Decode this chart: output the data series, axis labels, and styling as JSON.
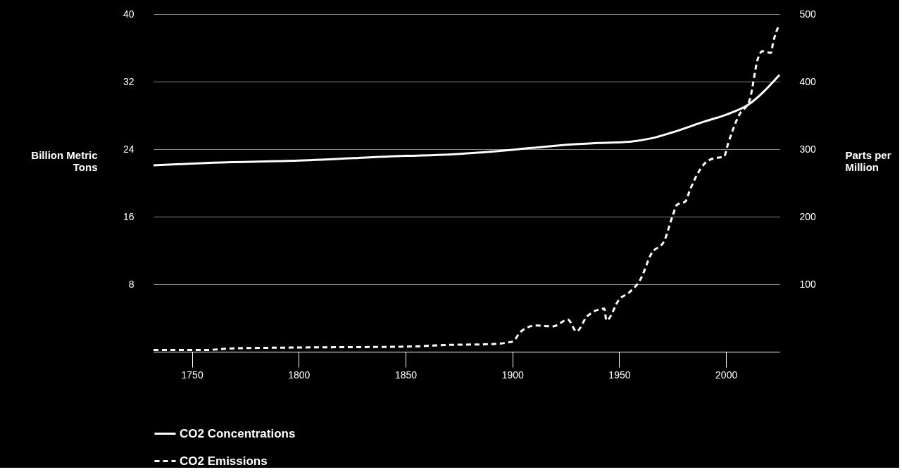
{
  "chart_data": {
    "type": "line",
    "ylabel": "Billion Metric Tons",
    "y2label": "Parts per Million",
    "xlim": [
      1732,
      2025
    ],
    "xticks": [
      1750,
      1800,
      1850,
      1900,
      1950,
      2000
    ],
    "ylim": [
      0,
      40
    ],
    "yticks": [
      8,
      16,
      24,
      32,
      40
    ],
    "y2lim": [
      0,
      500
    ],
    "y2ticks": [
      100,
      200,
      300,
      400,
      500
    ],
    "grid": "y",
    "legend": "bottom",
    "series": [
      {
        "name": "CO2 Concentrations",
        "color": "#ffffff",
        "line_style": "solid",
        "axis": "y2",
        "x": [
          1732,
          1760,
          1800,
          1850,
          1870,
          1900,
          1920,
          1940,
          1955,
          1965,
          1975,
          1990,
          2000,
          2010,
          2025
        ],
        "values": [
          276,
          280,
          283,
          290,
          292,
          299,
          305,
          309,
          311,
          316,
          325,
          341,
          351,
          365,
          410
        ]
      },
      {
        "name": "CO2 Emissions",
        "color": "#ffffff",
        "line_style": "dashed",
        "axis": "y",
        "x": [
          1732,
          1755,
          1770,
          1800,
          1850,
          1870,
          1890,
          1900,
          1904,
          1911,
          1919,
          1926,
          1930,
          1935,
          1943,
          1944,
          1950,
          1955,
          1960,
          1965,
          1971,
          1975,
          1977,
          1981,
          1983,
          1990,
          1994,
          1999,
          2001,
          2006,
          2011,
          2015,
          2017,
          2021,
          2022,
          2025
        ],
        "values": [
          0.2,
          0.2,
          0.4,
          0.5,
          0.6,
          0.8,
          0.9,
          1.2,
          2.4,
          3.1,
          3.0,
          3.8,
          2.4,
          4.2,
          5.1,
          3.7,
          6.2,
          7.1,
          8.6,
          11.6,
          13.1,
          16.1,
          17.4,
          17.8,
          19.1,
          22.3,
          22.9,
          23.1,
          24.7,
          28.0,
          29.8,
          34.8,
          35.6,
          35.4,
          36.6,
          38.8
        ]
      }
    ]
  }
}
